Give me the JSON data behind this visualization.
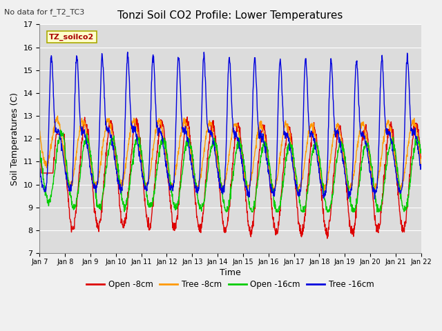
{
  "title": "Tonzi Soil CO2 Profile: Lower Temperatures",
  "subtitle": "No data for f_T2_TC3",
  "xlabel": "Time",
  "ylabel": "Soil Temperatures (C)",
  "ylim": [
    7.0,
    17.0
  ],
  "yticks": [
    7.0,
    8.0,
    9.0,
    10.0,
    11.0,
    12.0,
    13.0,
    14.0,
    15.0,
    16.0,
    17.0
  ],
  "x_tick_labels": [
    "Jan 7",
    "Jan 8",
    "Jan 9",
    "Jan 10",
    "Jan 11",
    "Jan 12",
    "Jan 13",
    "Jan 14",
    "Jan 15",
    "Jan 16",
    "Jan 17",
    "Jan 18",
    "Jan 19",
    "Jan 20",
    "Jan 21",
    "Jan 22"
  ],
  "bg_color": "#dcdcdc",
  "grid_color": "#ffffff",
  "fig_bg": "#f0f0f0",
  "legend_box_color": "#ffffcc",
  "legend_box_edge": "#aaaa00",
  "series_colors": [
    "#dd0000",
    "#ff9900",
    "#00cc00",
    "#0000dd"
  ],
  "series_labels": [
    "Open -8cm",
    "Tree -8cm",
    "Open -16cm",
    "Tree -16cm"
  ],
  "watermark_text": "TZ_soilco2"
}
